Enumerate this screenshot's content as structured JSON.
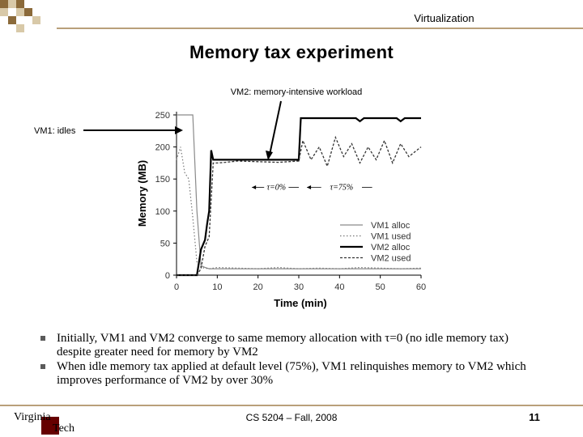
{
  "header": {
    "section": "Virtualization",
    "title": "Memory tax experiment"
  },
  "annotations": {
    "vm2": "VM2: memory-intensive workload",
    "vm1": "VM1: idles"
  },
  "chart_data": {
    "type": "line",
    "xlabel": "Time (min)",
    "ylabel": "Memory (MB)",
    "xlim": [
      0,
      60
    ],
    "ylim": [
      0,
      250
    ],
    "xticks": [
      0,
      10,
      20,
      30,
      40,
      50,
      60
    ],
    "yticks": [
      0,
      50,
      100,
      150,
      200,
      250
    ],
    "legend_position": "lower-right",
    "annotations": [
      "τ=0%",
      "τ=75%"
    ],
    "series": [
      {
        "name": "VM1 alloc",
        "style": "thin-solid",
        "x": [
          0,
          1,
          2,
          4,
          5,
          6,
          7,
          8,
          9,
          10,
          20,
          30,
          30.5,
          40,
          50,
          60
        ],
        "y": [
          250,
          250,
          250,
          250,
          100,
          15,
          12,
          10,
          10,
          10,
          10,
          10,
          10,
          10,
          10,
          10
        ]
      },
      {
        "name": "VM1 used",
        "style": "dotted",
        "x": [
          0,
          1,
          2,
          3,
          4,
          5,
          6,
          8,
          10,
          15,
          20,
          25,
          30,
          35,
          40,
          45,
          50,
          55,
          60
        ],
        "y": [
          180,
          200,
          160,
          150,
          90,
          20,
          12,
          10,
          12,
          11,
          10,
          12,
          10,
          11,
          10,
          12,
          11,
          10,
          11
        ]
      },
      {
        "name": "VM2 alloc",
        "style": "thick-solid",
        "x": [
          0,
          5,
          6,
          7,
          7.5,
          8,
          8.5,
          9,
          9.5,
          10,
          20,
          30,
          30.5,
          35,
          40,
          44,
          45,
          46,
          50,
          54,
          55,
          56,
          60
        ],
        "y": [
          0,
          0,
          40,
          55,
          80,
          100,
          195,
          180,
          180,
          180,
          180,
          180,
          245,
          245,
          245,
          245,
          240,
          245,
          245,
          245,
          240,
          245,
          245
        ]
      },
      {
        "name": "VM2 used",
        "style": "dashed",
        "x": [
          0,
          5,
          6,
          7,
          8,
          9,
          10,
          12,
          15,
          20,
          25,
          30,
          31,
          33,
          35,
          37,
          39,
          41,
          43,
          45,
          47,
          49,
          51,
          53,
          55,
          57,
          60
        ],
        "y": [
          0,
          0,
          10,
          45,
          60,
          175,
          175,
          176,
          178,
          177,
          176,
          178,
          210,
          180,
          200,
          170,
          215,
          185,
          205,
          175,
          200,
          180,
          210,
          175,
          205,
          185,
          200
        ]
      }
    ]
  },
  "bullets": [
    {
      "text": "Initially, VM1 and VM2 converge to same memory allocation with τ=0 (no idle memory tax) despite greater need for memory by VM2"
    },
    {
      "text": "When idle memory tax applied at default level (75%), VM1 relinquishes memory to VM2 which improves performance of VM2 by over 30%"
    }
  ],
  "footer": {
    "course": "CS 5204 – Fall, 2008",
    "page": "11",
    "logo_text_top": "Virginia",
    "logo_text_bottom": "Tech"
  },
  "colors": {
    "accent_tan": "#b9a07a",
    "logo_maroon": "#660000",
    "checker_dark": "#8b6a3a",
    "checker_light": "#d8c9a8"
  }
}
